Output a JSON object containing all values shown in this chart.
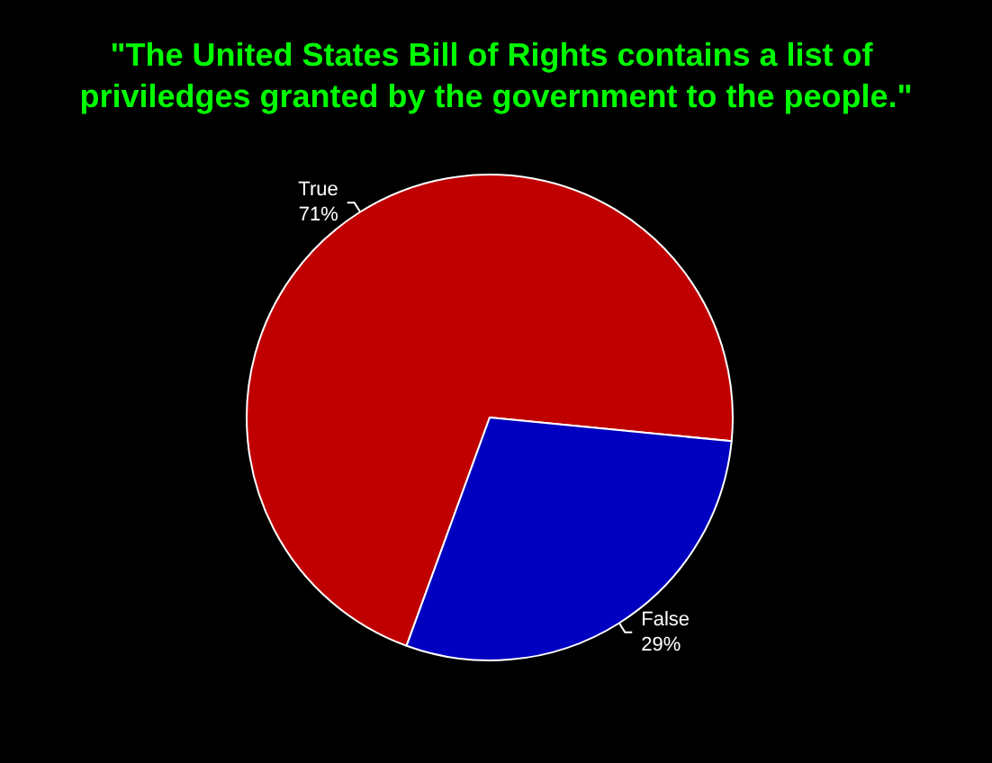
{
  "chart_data": {
    "type": "pie",
    "title": "\"The United States Bill of Rights contains a list of priviledges granted by the government to the people.\"",
    "categories": [
      "True",
      "False"
    ],
    "values": [
      71,
      29
    ],
    "colors": [
      "#c00000",
      "#0000c0"
    ],
    "value_labels": [
      "71%",
      "29%"
    ],
    "legend": false
  }
}
